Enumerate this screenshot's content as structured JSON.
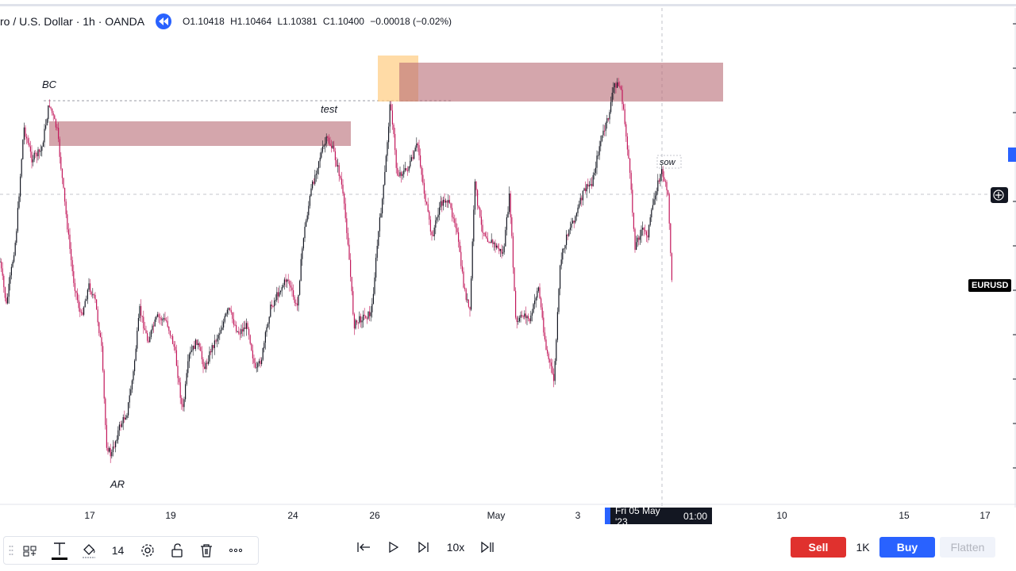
{
  "legend": {
    "symbol": "ro / U.S. Dollar · 1h · OANDA",
    "open": "O1.10418",
    "high": "H1.10464",
    "low": "L1.10381",
    "close": "C1.10400",
    "change": "−0.00018 (−0.02%)"
  },
  "price_axis": {
    "symbol_label": "EURUSD"
  },
  "time_axis": {
    "highlight_date": "Fri 05 May '23",
    "highlight_time": "01:00"
  },
  "toolbar": {
    "font_size": "14"
  },
  "replay": {
    "speed": "10x"
  },
  "trade": {
    "sell_label": "Sell",
    "quantity": "1K",
    "buy_label": "Buy",
    "flatten_label": "Flatten"
  },
  "colors": {
    "up_candle": "#131722",
    "down_candle": "#c2185b",
    "zone_fill": "#b86b74",
    "highlight_fill": "#ffcc80",
    "accent": "#2962ff",
    "sell": "#e0312e"
  },
  "chart_data": {
    "type": "candlestick",
    "symbol": "EURUSD",
    "timeframe": "1h",
    "x_ticks": [
      "17",
      "19",
      "24",
      "26",
      "May",
      "3",
      "10",
      "15",
      "17"
    ],
    "annotations": [
      "BC",
      "test",
      "AR",
      "sow"
    ],
    "zones": [
      {
        "label": "",
        "from_tick": "17",
        "to_tick": "24"
      },
      {
        "label": "",
        "from_tick": "26",
        "to_tick": "3"
      }
    ],
    "price_path": [
      [
        0,
        330
      ],
      [
        8,
        385
      ],
      [
        20,
        300
      ],
      [
        30,
        160
      ],
      [
        40,
        200
      ],
      [
        52,
        190
      ],
      [
        62,
        130
      ],
      [
        72,
        165
      ],
      [
        82,
        260
      ],
      [
        92,
        350
      ],
      [
        102,
        400
      ],
      [
        112,
        360
      ],
      [
        120,
        380
      ],
      [
        128,
        440
      ],
      [
        134,
        560
      ],
      [
        140,
        575
      ],
      [
        150,
        540
      ],
      [
        160,
        520
      ],
      [
        168,
        470
      ],
      [
        176,
        390
      ],
      [
        186,
        430
      ],
      [
        198,
        400
      ],
      [
        210,
        405
      ],
      [
        220,
        440
      ],
      [
        230,
        520
      ],
      [
        238,
        450
      ],
      [
        248,
        430
      ],
      [
        258,
        465
      ],
      [
        266,
        440
      ],
      [
        276,
        420
      ],
      [
        288,
        390
      ],
      [
        300,
        420
      ],
      [
        312,
        410
      ],
      [
        322,
        470
      ],
      [
        330,
        450
      ],
      [
        340,
        390
      ],
      [
        350,
        370
      ],
      [
        362,
        350
      ],
      [
        374,
        390
      ],
      [
        382,
        300
      ],
      [
        392,
        240
      ],
      [
        402,
        200
      ],
      [
        412,
        175
      ],
      [
        420,
        190
      ],
      [
        430,
        230
      ],
      [
        438,
        300
      ],
      [
        446,
        410
      ],
      [
        456,
        400
      ],
      [
        468,
        395
      ],
      [
        476,
        300
      ],
      [
        484,
        230
      ],
      [
        492,
        125
      ],
      [
        500,
        220
      ],
      [
        512,
        215
      ],
      [
        520,
        200
      ],
      [
        526,
        180
      ],
      [
        534,
        240
      ],
      [
        544,
        300
      ],
      [
        554,
        260
      ],
      [
        562,
        250
      ],
      [
        574,
        280
      ],
      [
        584,
        360
      ],
      [
        592,
        395
      ],
      [
        598,
        230
      ],
      [
        606,
        285
      ],
      [
        614,
        300
      ],
      [
        624,
        310
      ],
      [
        634,
        320
      ],
      [
        642,
        245
      ],
      [
        650,
        410
      ],
      [
        660,
        395
      ],
      [
        668,
        405
      ],
      [
        678,
        360
      ],
      [
        688,
        440
      ],
      [
        698,
        480
      ],
      [
        706,
        330
      ],
      [
        716,
        290
      ],
      [
        726,
        270
      ],
      [
        736,
        240
      ],
      [
        746,
        230
      ],
      [
        756,
        180
      ],
      [
        766,
        150
      ],
      [
        774,
        105
      ],
      [
        782,
        110
      ],
      [
        792,
        200
      ],
      [
        800,
        310
      ],
      [
        808,
        290
      ],
      [
        816,
        295
      ],
      [
        826,
        240
      ],
      [
        834,
        215
      ],
      [
        842,
        250
      ],
      [
        848,
        395
      ]
    ]
  }
}
